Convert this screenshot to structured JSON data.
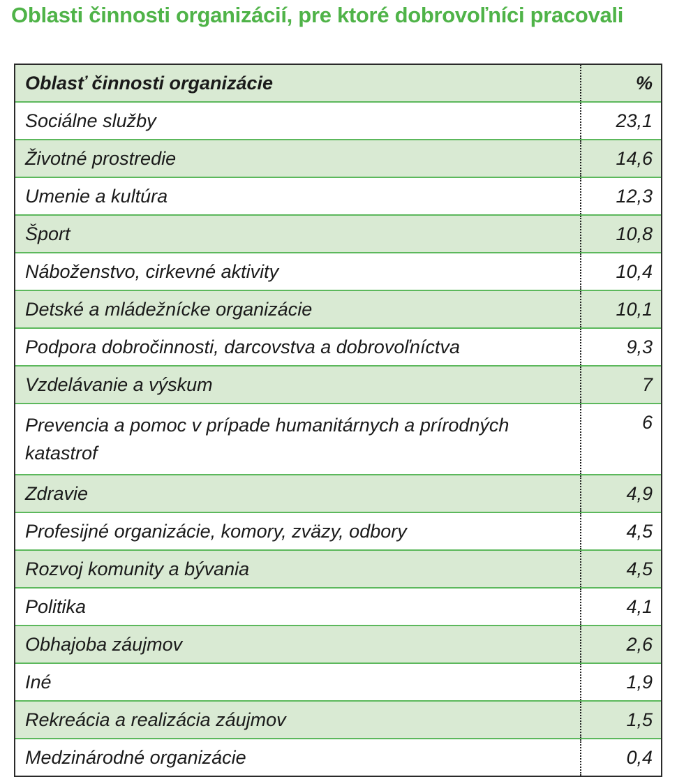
{
  "title": "Oblasti činnosti organizácií, pre ktoré dobrovoľníci pracovali",
  "table": {
    "headers": {
      "category": "Oblasť činnosti organizácie",
      "percent": "%"
    },
    "rows": [
      {
        "category": "Sociálne služby",
        "percent": "23,1"
      },
      {
        "category": "Životné prostredie",
        "percent": "14,6"
      },
      {
        "category": "Umenie a kultúra",
        "percent": "12,3"
      },
      {
        "category": "Šport",
        "percent": "10,8"
      },
      {
        "category": "Náboženstvo, cirkevné aktivity",
        "percent": "10,4"
      },
      {
        "category": "Detské a mládežnícke organizácie",
        "percent": "10,1"
      },
      {
        "category": "Podpora dobročinnosti, darcovstva a dobrovoľníctva",
        "percent": "9,3"
      },
      {
        "category": "Vzdelávanie a výskum",
        "percent": "7"
      },
      {
        "category": "Prevencia a pomoc v prípade humanitárnych a prírodných katastrof",
        "percent": "6"
      },
      {
        "category": "Zdravie",
        "percent": "4,9"
      },
      {
        "category": "Profesijné organizácie, komory, zväzy, odbory",
        "percent": "4,5"
      },
      {
        "category": "Rozvoj komunity a bývania",
        "percent": "4,5"
      },
      {
        "category": "Politika",
        "percent": "4,1"
      },
      {
        "category": "Obhajoba záujmov",
        "percent": "2,6"
      },
      {
        "category": "Iné",
        "percent": "1,9"
      },
      {
        "category": "Rekreácia a realizácia záujmov",
        "percent": "1,5"
      },
      {
        "category": "Medzinárodné organizácie",
        "percent": "0,4"
      }
    ]
  },
  "colors": {
    "title": "#4fb348",
    "shaded_row": "#d9ead3",
    "row_border": "#5cb85c"
  }
}
